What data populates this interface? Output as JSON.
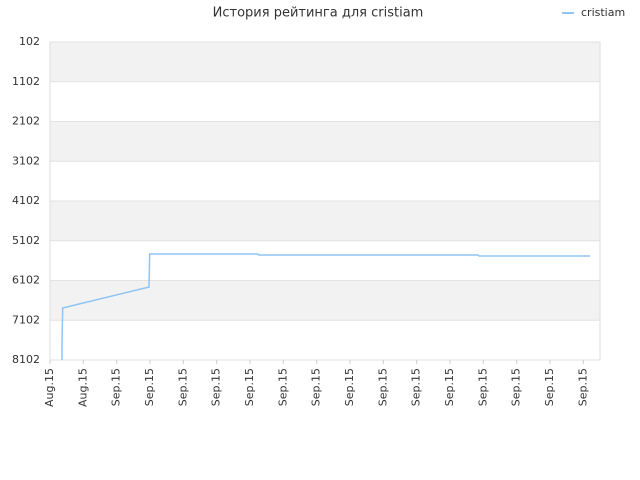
{
  "chart_data": {
    "type": "line",
    "title": "История рейтинга для cristiam",
    "x": [
      0.36,
      0.36,
      0.38,
      2.97,
      2.99,
      6.24,
      6.27,
      12.84,
      12.87,
      16.2
    ],
    "series": [
      {
        "name": "cristiam",
        "color": "#90c4f4",
        "values": [
          8102,
          7675,
          6794,
          6266,
          5435,
          5435,
          5460,
          5460,
          5485,
          5485
        ]
      }
    ],
    "xlim": [
      0,
      16.5
    ],
    "xticks": [
      {
        "value": 0,
        "label": "Aug.15"
      },
      {
        "value": 1,
        "label": "Aug.15"
      },
      {
        "value": 2,
        "label": "Sep.15"
      },
      {
        "value": 3,
        "label": "Sep.15"
      },
      {
        "value": 4,
        "label": "Sep.15"
      },
      {
        "value": 5,
        "label": "Sep.15"
      },
      {
        "value": 6,
        "label": "Sep.15"
      },
      {
        "value": 7,
        "label": "Sep.15"
      },
      {
        "value": 8,
        "label": "Sep.15"
      },
      {
        "value": 9,
        "label": "Sep.15"
      },
      {
        "value": 10,
        "label": "Sep.15"
      },
      {
        "value": 11,
        "label": "Sep.15"
      },
      {
        "value": 12,
        "label": "Sep.15"
      },
      {
        "value": 13,
        "label": "Sep.15"
      },
      {
        "value": 14,
        "label": "Sep.15"
      },
      {
        "value": 15,
        "label": "Sep.15"
      },
      {
        "value": 16,
        "label": "Sep.15"
      }
    ],
    "ylim": [
      8102,
      102
    ],
    "yticks": [
      102,
      1102,
      2102,
      3102,
      4102,
      5102,
      6102,
      7102,
      8102
    ],
    "grid": true,
    "legend": "top-right"
  }
}
